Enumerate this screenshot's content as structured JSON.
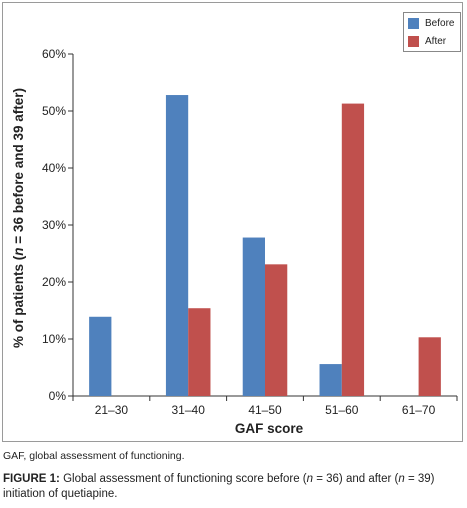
{
  "footnote": "GAF, global assessment of functioning.",
  "caption": {
    "label": "FIGURE 1:",
    "t1": " Global assessment of functioning score before (",
    "n1": "n",
    "t2": " = 36) and after (",
    "n2": "n",
    "t3": " = 39) initiation of quetiapine."
  },
  "chart_data": {
    "type": "bar",
    "xlabel": "GAF score",
    "ylabel_parts": [
      "% of patients (",
      "n",
      " = 36 before and 39 after)"
    ],
    "categories": [
      "21–30",
      "31–40",
      "41–50",
      "51–60",
      "61–70"
    ],
    "ylim": [
      0,
      60
    ],
    "yticks": [
      0,
      10,
      20,
      30,
      40,
      50,
      60
    ],
    "ytick_labels": [
      "0%",
      "10%",
      "20%",
      "30%",
      "40%",
      "50%",
      "60%"
    ],
    "grid": false,
    "legend_position": "top-right",
    "series": [
      {
        "name": "Before",
        "color": "#4f81bd",
        "values": [
          13.9,
          52.8,
          27.8,
          5.6,
          0
        ]
      },
      {
        "name": "After",
        "color": "#c0504d",
        "values": [
          0,
          15.4,
          23.1,
          51.3,
          10.3
        ]
      }
    ]
  }
}
